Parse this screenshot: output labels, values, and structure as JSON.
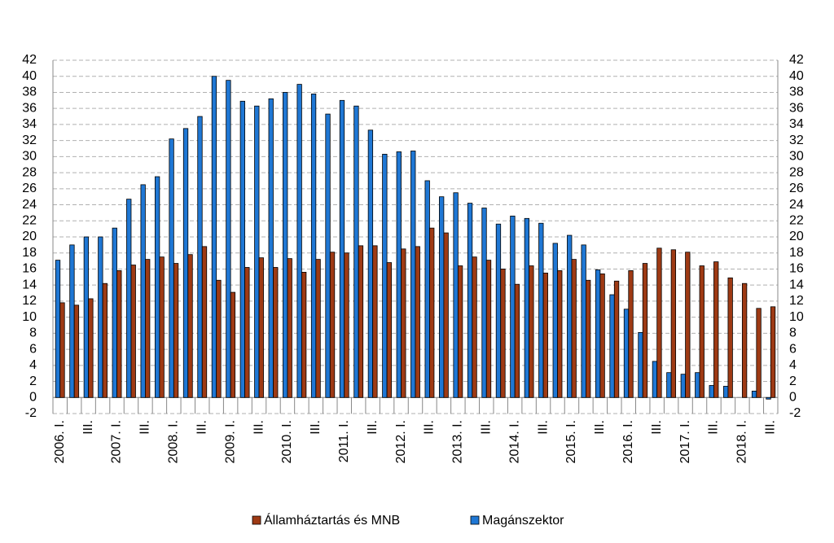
{
  "chart_data": {
    "type": "bar",
    "categories": [
      "2006. I.",
      null,
      "III.",
      null,
      "2007. I.",
      null,
      "III.",
      null,
      "2008. I.",
      null,
      "III.",
      null,
      "2009. I.",
      null,
      "III.",
      null,
      "2010. I.",
      null,
      "III.",
      null,
      "2011. I.",
      null,
      "III.",
      null,
      "2012. I.",
      null,
      "III.",
      null,
      "2013. I.",
      null,
      "III.",
      null,
      "2014. I.",
      null,
      "III.",
      null,
      "2015. I.",
      null,
      "III.",
      null,
      "2016. I.",
      null,
      "III.",
      null,
      "2017. I.",
      null,
      "III.",
      null,
      "2018. I.",
      null,
      "III."
    ],
    "series": [
      {
        "name": "Államháztartás és MNB",
        "color": "#9e3a14",
        "values": [
          11.8,
          11.5,
          12.3,
          14.2,
          15.8,
          16.5,
          17.2,
          17.5,
          16.7,
          17.8,
          18.8,
          14.6,
          13.1,
          16.2,
          17.4,
          16.2,
          17.3,
          15.6,
          17.2,
          18.1,
          18,
          18.9,
          18.9,
          16.8,
          18.5,
          18.8,
          21.1,
          20.5,
          16.4,
          17.5,
          17.1,
          16,
          14.1,
          16.4,
          15.5,
          15.8,
          17.2,
          14.6,
          15.4,
          14.5,
          15.8,
          16.7,
          18.6,
          18.4,
          18.1,
          16.4,
          16.9,
          14.9,
          14.2,
          11.1,
          11.3
        ]
      },
      {
        "name": "Magánszektor",
        "color": "#1f77d4",
        "values": [
          17.1,
          19,
          20,
          20,
          21.1,
          24.7,
          26.5,
          27.5,
          32.2,
          33.5,
          35,
          40,
          39.5,
          36.9,
          36.3,
          37.2,
          38,
          39,
          37.8,
          35.3,
          37,
          36.3,
          33.3,
          30.3,
          30.6,
          30.7,
          27,
          25,
          25.5,
          24.2,
          23.6,
          21.6,
          22.6,
          22.3,
          21.7,
          19.2,
          20.2,
          19,
          15.9,
          12.8,
          11,
          8.1,
          4.5,
          3.1,
          2.9,
          3.1,
          1.5,
          1.4,
          0,
          0.8,
          -0.2
        ]
      }
    ],
    "ylim": [
      -2,
      42
    ],
    "yticks": [
      -2,
      0,
      2,
      4,
      6,
      8,
      10,
      12,
      14,
      16,
      18,
      20,
      22,
      24,
      26,
      28,
      30,
      32,
      34,
      36,
      38,
      40,
      42
    ],
    "y2lim": [
      -2,
      42
    ],
    "y2ticks": [
      -2,
      0,
      2,
      4,
      6,
      8,
      10,
      12,
      14,
      16,
      18,
      20,
      22,
      24,
      26,
      28,
      30,
      32,
      34,
      36,
      38,
      40,
      42
    ],
    "grid": true,
    "legend": "bottom"
  }
}
